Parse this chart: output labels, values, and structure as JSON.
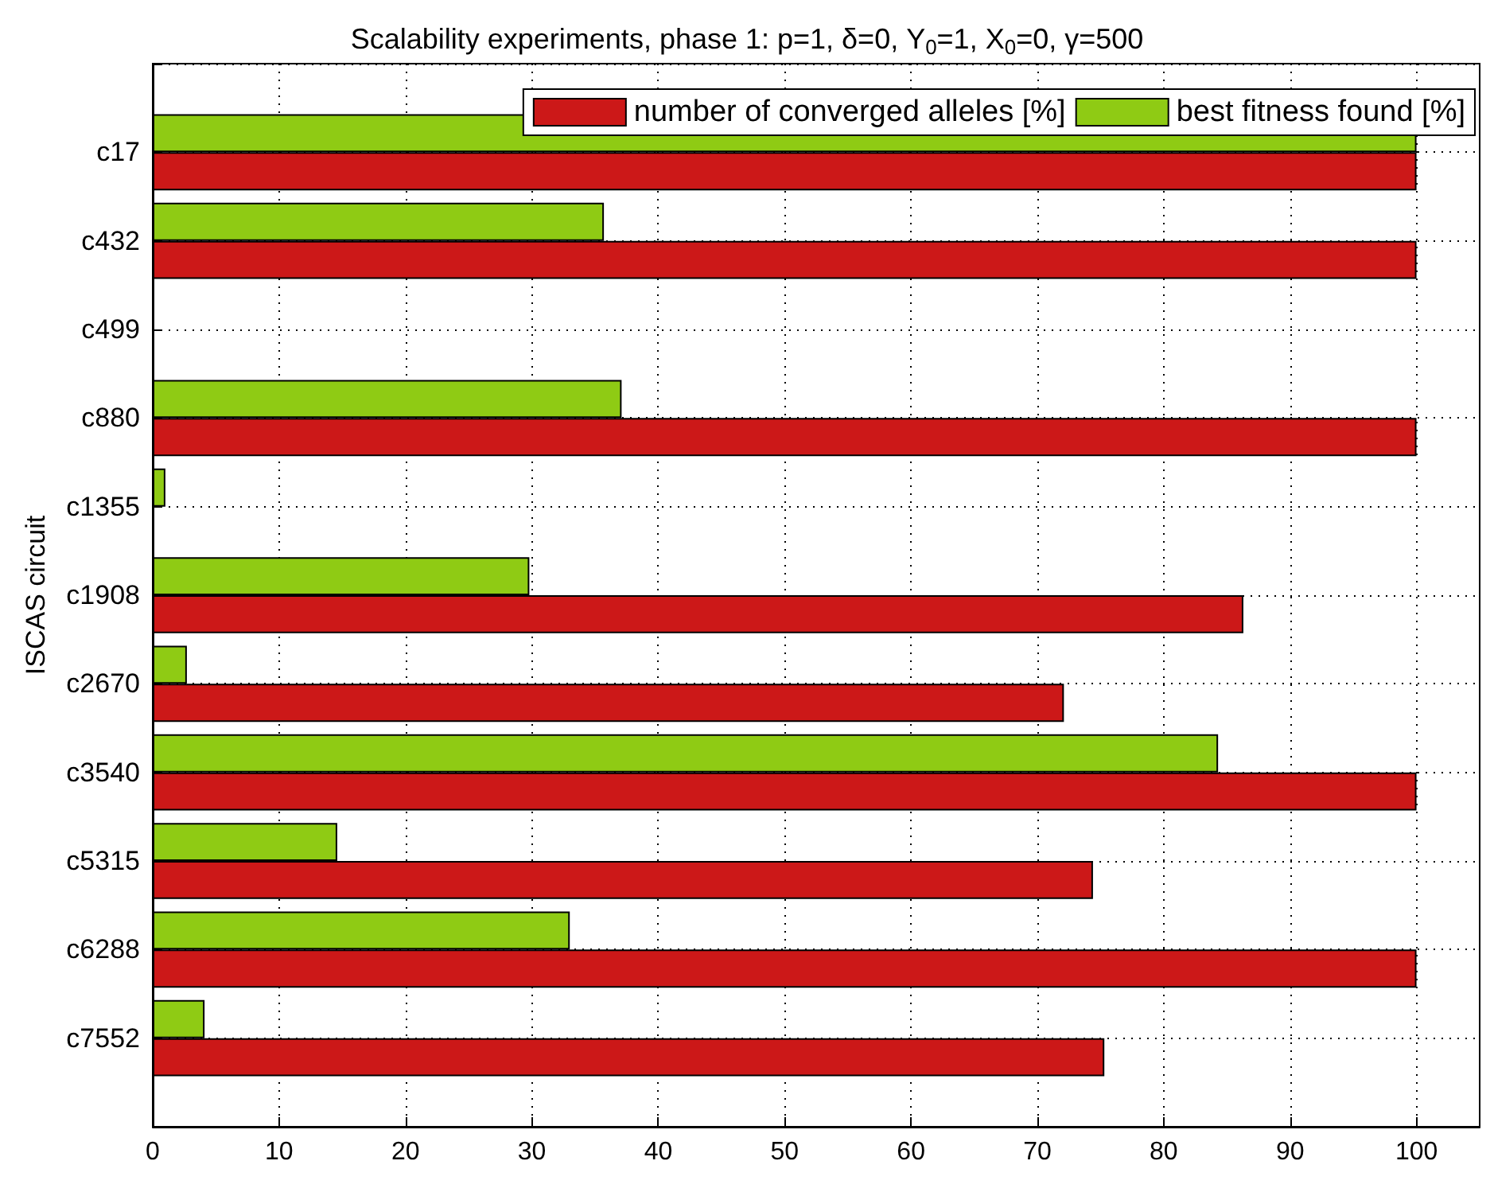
{
  "chart_data": {
    "type": "bar",
    "orientation": "horizontal",
    "title": "Scalability experiments, phase 1: p=1, δ=0, Y$_{0}$=1, X$_{0}$=0, γ=500",
    "ylabel": "ISCAS circuit",
    "categories": [
      "c17",
      "c432",
      "c499",
      "c880",
      "c1355",
      "c1908",
      "c2670",
      "c3540",
      "c5315",
      "c6288",
      "c7552"
    ],
    "series": [
      {
        "name": "number of converged alleles [%]",
        "color": "#cc1818",
        "values": [
          100,
          100,
          null,
          100,
          null,
          86.3,
          72.1,
          100,
          74.4,
          100,
          75.3
        ]
      },
      {
        "name": "best fitness found [%]",
        "color": "#8fcb14",
        "values": [
          100,
          35.7,
          null,
          37.1,
          1.0,
          29.8,
          2.7,
          84.3,
          14.6,
          33.0,
          4.1
        ]
      }
    ],
    "xlim": [
      0,
      105
    ],
    "xticks": [
      0,
      10,
      20,
      30,
      40,
      50,
      60,
      70,
      80,
      90,
      100
    ],
    "grid": true,
    "legend": "top right"
  }
}
